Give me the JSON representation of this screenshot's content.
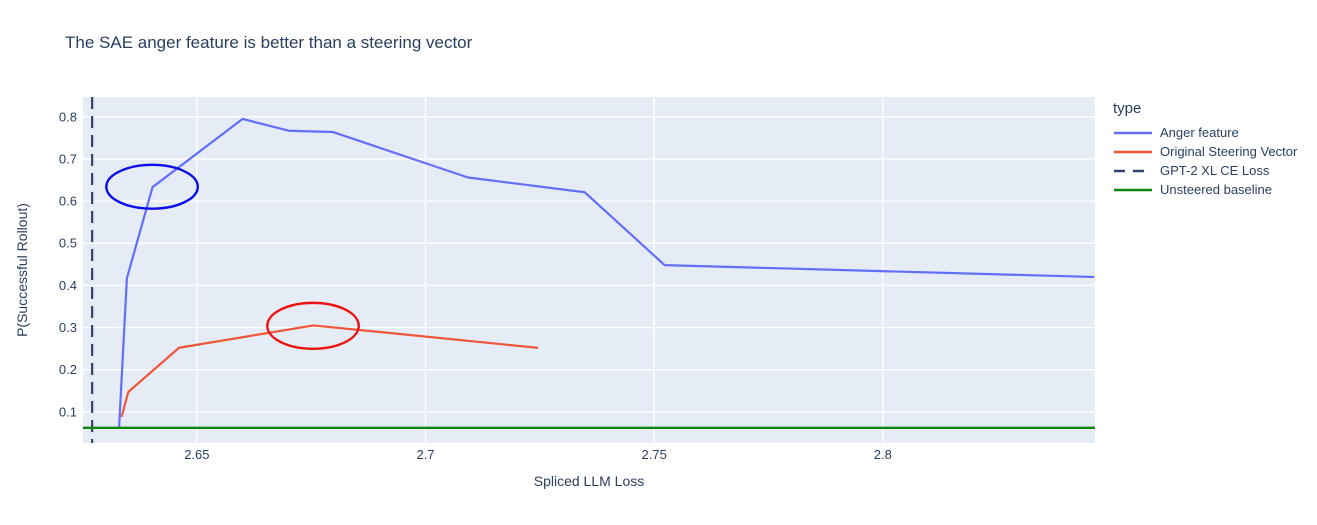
{
  "chart_data": {
    "type": "line",
    "title": "The SAE anger feature is better than a steering vector",
    "xlabel": "Spliced LLM Loss",
    "ylabel": "P(Successful Rollout)",
    "legend_title": "type",
    "legend_position": "right",
    "grid": true,
    "plot_bg": "#E5ECF6",
    "grid_color": "#FFFFFF",
    "text_color": "#2A3F5F",
    "xlim": [
      2.6251,
      2.8464
    ],
    "ylim": [
      0.026,
      0.847
    ],
    "xticks": {
      "values": [
        2.65,
        2.7,
        2.75,
        2.8
      ],
      "labels": [
        "2.65",
        "2.7",
        "2.75",
        "2.8"
      ]
    },
    "yticks": {
      "values": [
        0.1,
        0.2,
        0.3,
        0.4,
        0.5,
        0.6,
        0.7,
        0.8
      ],
      "labels": [
        "0.1",
        "0.2",
        "0.3",
        "0.4",
        "0.5",
        "0.6",
        "0.7",
        "0.8"
      ]
    },
    "series": [
      {
        "name": "Anger feature",
        "type": "line",
        "color": "#636EFA",
        "x": [
          2.633,
          2.6347,
          2.6403,
          2.66,
          2.6701,
          2.6797,
          2.7093,
          2.7348,
          2.7523,
          2.846
        ],
        "y": [
          0.065,
          0.417,
          0.633,
          0.795,
          0.767,
          0.764,
          0.656,
          0.621,
          0.448,
          0.42
        ]
      },
      {
        "name": "Original Steering Vector",
        "type": "line",
        "color": "#EF553B",
        "x": [
          2.6336,
          2.635,
          2.6461,
          2.6755,
          2.7244
        ],
        "y": [
          0.09,
          0.147,
          0.252,
          0.305,
          0.252
        ]
      },
      {
        "name": "GPT-2 XL CE Loss",
        "type": "vline",
        "color": "#30456B",
        "dash": "12 7",
        "x": 2.6271
      },
      {
        "name": "Unsteered baseline",
        "type": "hline",
        "color": "#0E870E",
        "y": 0.062
      }
    ],
    "annotations": [
      {
        "shape": "ellipse",
        "color": "#0D0DE8",
        "cx": 2.6402,
        "cy": 0.634,
        "rx": 0.01,
        "ry": 0.052
      },
      {
        "shape": "ellipse",
        "color": "#EC1212",
        "cx": 2.6754,
        "cy": 0.304,
        "rx": 0.01,
        "ry": 0.0545
      }
    ]
  }
}
